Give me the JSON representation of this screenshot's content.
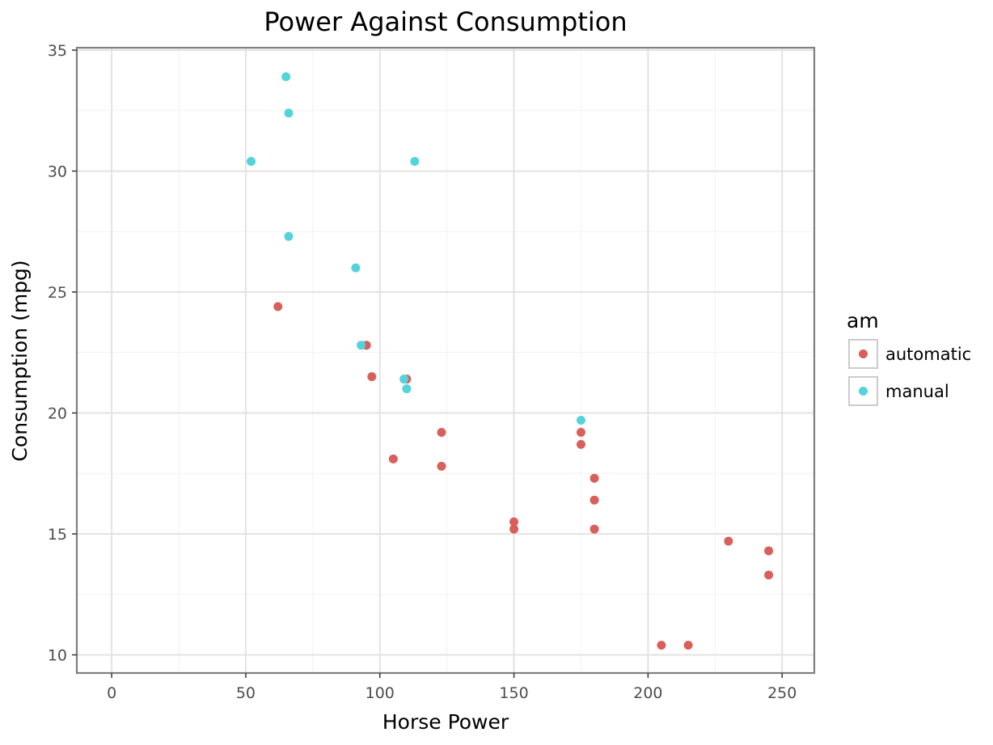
{
  "chart_data": {
    "type": "scatter",
    "title": "Power Against Consumption",
    "xlabel": "Horse Power",
    "ylabel": "Consumption (mpg)",
    "xlim": [
      -13,
      262
    ],
    "ylim": [
      9.25,
      35.1
    ],
    "xticks": [
      0,
      50,
      100,
      150,
      200,
      250
    ],
    "xtick_labels": [
      "0",
      "50",
      "100",
      "150",
      "200",
      "250"
    ],
    "yticks": [
      10,
      15,
      20,
      25,
      30,
      35
    ],
    "ytick_labels": [
      "10",
      "15",
      "20",
      "25",
      "30",
      "35"
    ],
    "grid": true,
    "legend": {
      "title": "am",
      "position": "right"
    },
    "series": [
      {
        "name": "automatic",
        "color": "#d9605a",
        "points": [
          [
            62,
            24.4
          ],
          [
            95,
            22.8
          ],
          [
            97,
            21.5
          ],
          [
            110,
            21.4
          ],
          [
            123,
            19.2
          ],
          [
            105,
            18.1
          ],
          [
            123,
            17.8
          ],
          [
            150,
            15.5
          ],
          [
            150,
            15.2
          ],
          [
            175,
            19.2
          ],
          [
            175,
            18.7
          ],
          [
            180,
            17.3
          ],
          [
            180,
            16.4
          ],
          [
            180,
            15.2
          ],
          [
            230,
            14.7
          ],
          [
            245,
            14.3
          ],
          [
            245,
            13.3
          ],
          [
            205,
            10.4
          ],
          [
            215,
            10.4
          ]
        ]
      },
      {
        "name": "manual",
        "color": "#55d3db",
        "points": [
          [
            65,
            33.9
          ],
          [
            66,
            32.4
          ],
          [
            52,
            30.4
          ],
          [
            113,
            30.4
          ],
          [
            66,
            27.3
          ],
          [
            91,
            26.0
          ],
          [
            93,
            22.8
          ],
          [
            109,
            21.4
          ],
          [
            110,
            21.0
          ],
          [
            175,
            19.7
          ]
        ]
      }
    ]
  }
}
